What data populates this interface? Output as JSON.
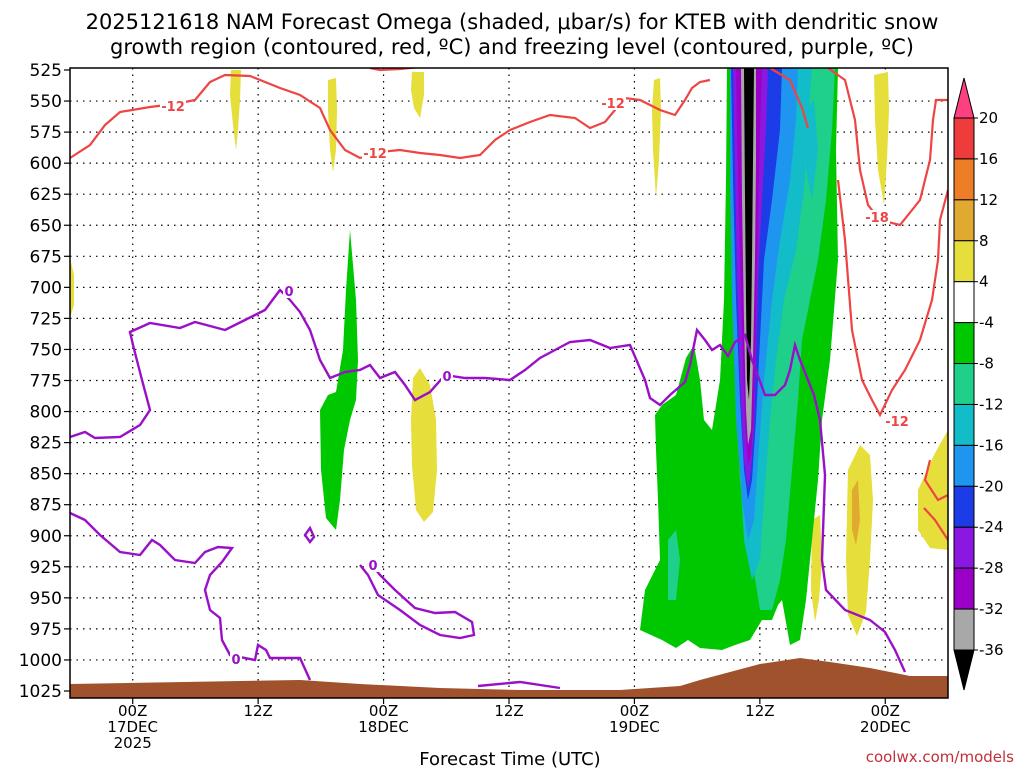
{
  "chart_data": {
    "type": "contour",
    "title_line1": "2025121618 NAM Forecast Omega (shaded, μbar/s) for KTEB with dendritic snow",
    "title_line2": "growth region (contoured, red, ºC) and freezing level (contoured, purple, ºC)",
    "xlabel": "Forecast Time (UTC)",
    "credit": "coolwx.com/models",
    "y_ticks": [
      "525",
      "550",
      "575",
      "600",
      "625",
      "650",
      "675",
      "700",
      "725",
      "750",
      "775",
      "800",
      "825",
      "850",
      "875",
      "900",
      "925",
      "950",
      "975",
      "1000",
      "1025"
    ],
    "x_ticks": [
      {
        "hour": 6,
        "line1": "00Z",
        "line2": "17DEC",
        "line3": "2025"
      },
      {
        "hour": 18,
        "line1": "12Z",
        "line2": "",
        "line3": ""
      },
      {
        "hour": 30,
        "line1": "00Z",
        "line2": "18DEC",
        "line3": ""
      },
      {
        "hour": 42,
        "line1": "12Z",
        "line2": "",
        "line3": ""
      },
      {
        "hour": 54,
        "line1": "00Z",
        "line2": "19DEC",
        "line3": ""
      },
      {
        "hour": 66,
        "line1": "12Z",
        "line2": "",
        "line3": ""
      },
      {
        "hour": 78,
        "line1": "00Z",
        "line2": "20DEC",
        "line3": ""
      }
    ],
    "x_range_hours": [
      0,
      84
    ],
    "y_range_hpa": [
      525,
      1025
    ],
    "grid": true,
    "colorbar": {
      "labels": [
        "20",
        "16",
        "12",
        "8",
        "4",
        "-4",
        "-8",
        "-12",
        "-16",
        "-20",
        "-24",
        "-28",
        "-32",
        "-36"
      ],
      "colors": [
        "#ff4080",
        "#ee3b3b",
        "#ee7d28",
        "#e0aa30",
        "#e6de3a",
        "#ffffff",
        "#00c800",
        "#1ed08a",
        "#12bcc8",
        "#1e96f0",
        "#1c3ce8",
        "#8a18e0",
        "#9a00c8",
        "#a8a8a8",
        "#000000"
      ]
    },
    "contour_labels": {
      "red": [
        "-12",
        "-18"
      ],
      "purple": [
        "0"
      ]
    }
  }
}
